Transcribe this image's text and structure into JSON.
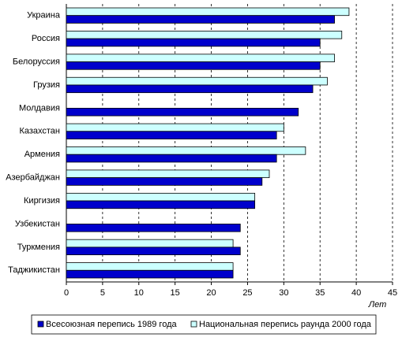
{
  "chart_data": {
    "type": "hbar",
    "categories": [
      "Украина",
      "Россия",
      "Белоруссия",
      "Грузия",
      "Молдавия",
      "Казахстан",
      "Армения",
      "Азербайджан",
      "Киргизия",
      "Узбекистан",
      "Туркмения",
      "Таджикистан"
    ],
    "series": [
      {
        "name": "Всесоюзная перепись 1989 года",
        "color": "#0000cc",
        "values": [
          37,
          35,
          35,
          34,
          32,
          29,
          29,
          27,
          26,
          24,
          24,
          23
        ]
      },
      {
        "name": "Национальная перепись раунда 2000 года",
        "color": "#ccffff",
        "values": [
          39,
          38,
          37,
          36,
          null,
          30,
          33,
          28,
          26,
          null,
          23,
          23
        ]
      }
    ],
    "xlim": [
      0,
      45
    ],
    "xticks": [
      0,
      5,
      10,
      15,
      20,
      25,
      30,
      35,
      40,
      45
    ],
    "x_label": "Лет",
    "grid": true,
    "legend": "bottom"
  }
}
